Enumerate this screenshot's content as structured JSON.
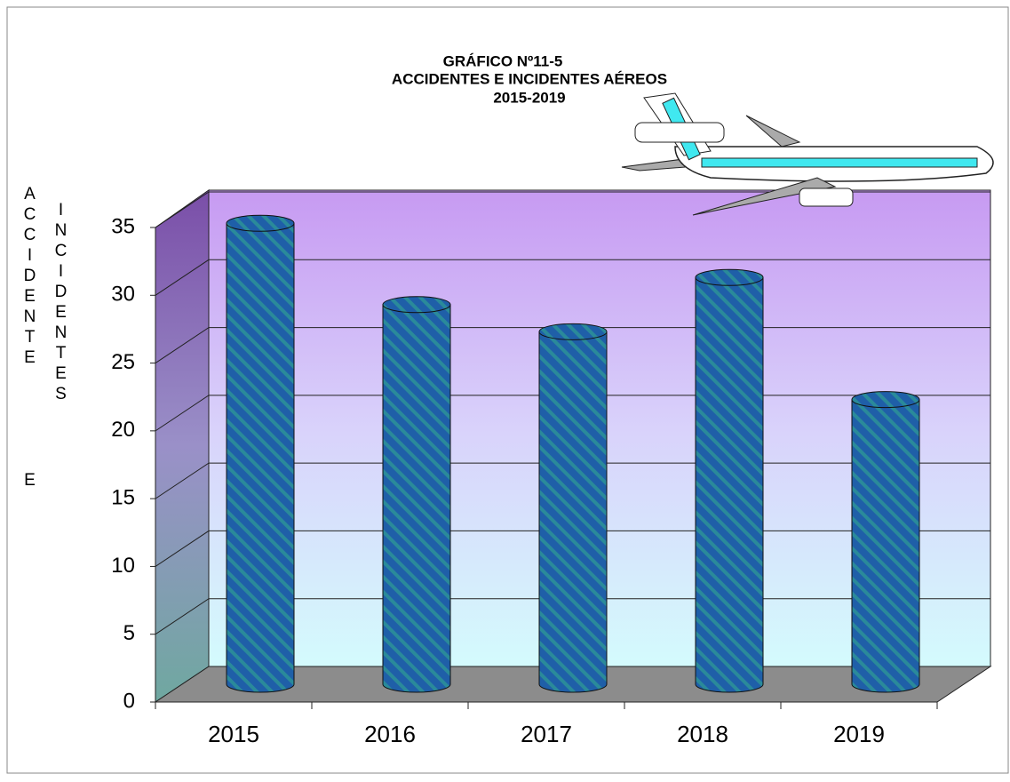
{
  "chart_data": {
    "type": "bar",
    "title": [
      "GRÁFICO Nº11-5",
      "ACCIDENTES  E INCIDENTES  AÉREOS",
      "2015-2019"
    ],
    "y_label": [
      "ACCIDENTE",
      "E",
      "INCIDENTES"
    ],
    "categories": [
      "2015",
      "2016",
      "2017",
      "2018",
      "2019"
    ],
    "values": [
      34,
      28,
      26,
      30,
      21
    ],
    "color": "#1f5fa8",
    "ylim": [
      0,
      35
    ],
    "yticks": [
      0,
      5,
      10,
      15,
      20,
      25,
      30,
      35
    ],
    "grid": true
  }
}
